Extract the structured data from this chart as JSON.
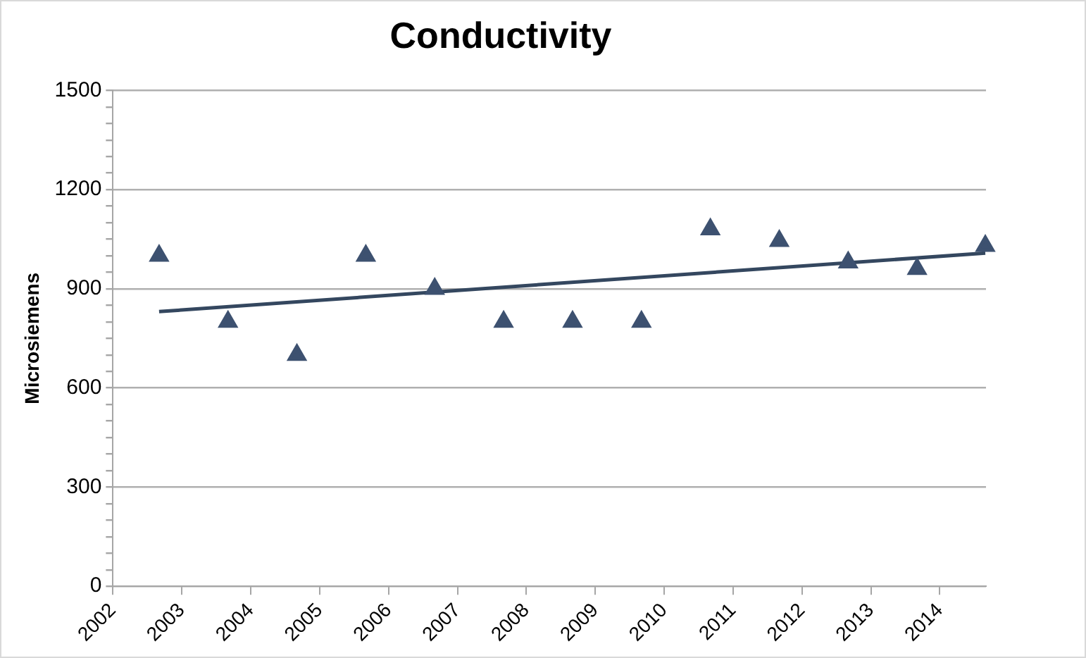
{
  "chart_data": {
    "type": "scatter",
    "title": "Conductivity",
    "ylabel": "Microsiemens",
    "series": [
      {
        "color": "#3d5170",
        "marker": "triangle",
        "x": [
          2002.67,
          2003.67,
          2004.67,
          2005.67,
          2006.67,
          2007.67,
          2008.67,
          2009.67,
          2010.67,
          2011.67,
          2012.67,
          2013.67,
          2014.66
        ],
        "values": [
          1000,
          800,
          700,
          1000,
          900,
          800,
          800,
          800,
          1080,
          1045,
          980,
          960,
          1030
        ]
      },
      {
        "type": "line",
        "color": "#34475f",
        "marker": "none",
        "line_style": "solid",
        "x": [
          2002.67,
          2014.66
        ],
        "values": [
          831,
          1008
        ]
      }
    ],
    "xlim": [
      2002,
      2014.67
    ],
    "xticks": [
      2002,
      2003,
      2004,
      2005,
      2006,
      2007,
      2008,
      2009,
      2010,
      2011,
      2012,
      2013,
      2014
    ],
    "ylim": [
      0,
      1500
    ],
    "yticks": [
      0,
      {
        "value": 50,
        "label": null
      },
      {
        "value": 100,
        "label": null
      },
      {
        "value": 150,
        "label": null
      },
      {
        "value": 200,
        "label": null
      },
      {
        "value": 250,
        "label": null
      },
      300,
      {
        "value": 350,
        "label": null
      },
      {
        "value": 400,
        "label": null
      },
      {
        "value": 450,
        "label": null
      },
      {
        "value": 500,
        "label": null
      },
      {
        "value": 550,
        "label": null
      },
      600,
      {
        "value": 650,
        "label": null
      },
      {
        "value": 700,
        "label": null
      },
      {
        "value": 750,
        "label": null
      },
      {
        "value": 800,
        "label": null
      },
      {
        "value": 850,
        "label": null
      },
      900,
      {
        "value": 950,
        "label": null
      },
      {
        "value": 1000,
        "label": null
      },
      {
        "value": 1050,
        "label": null
      },
      {
        "value": 1100,
        "label": null
      },
      {
        "value": 1150,
        "label": null
      },
      1200,
      {
        "value": 1250,
        "label": null
      },
      {
        "value": 1300,
        "label": null
      },
      {
        "value": 1350,
        "label": null
      },
      {
        "value": 1400,
        "label": null
      },
      {
        "value": 1450,
        "label": null
      },
      1500
    ],
    "grid": "y",
    "legend": false
  }
}
